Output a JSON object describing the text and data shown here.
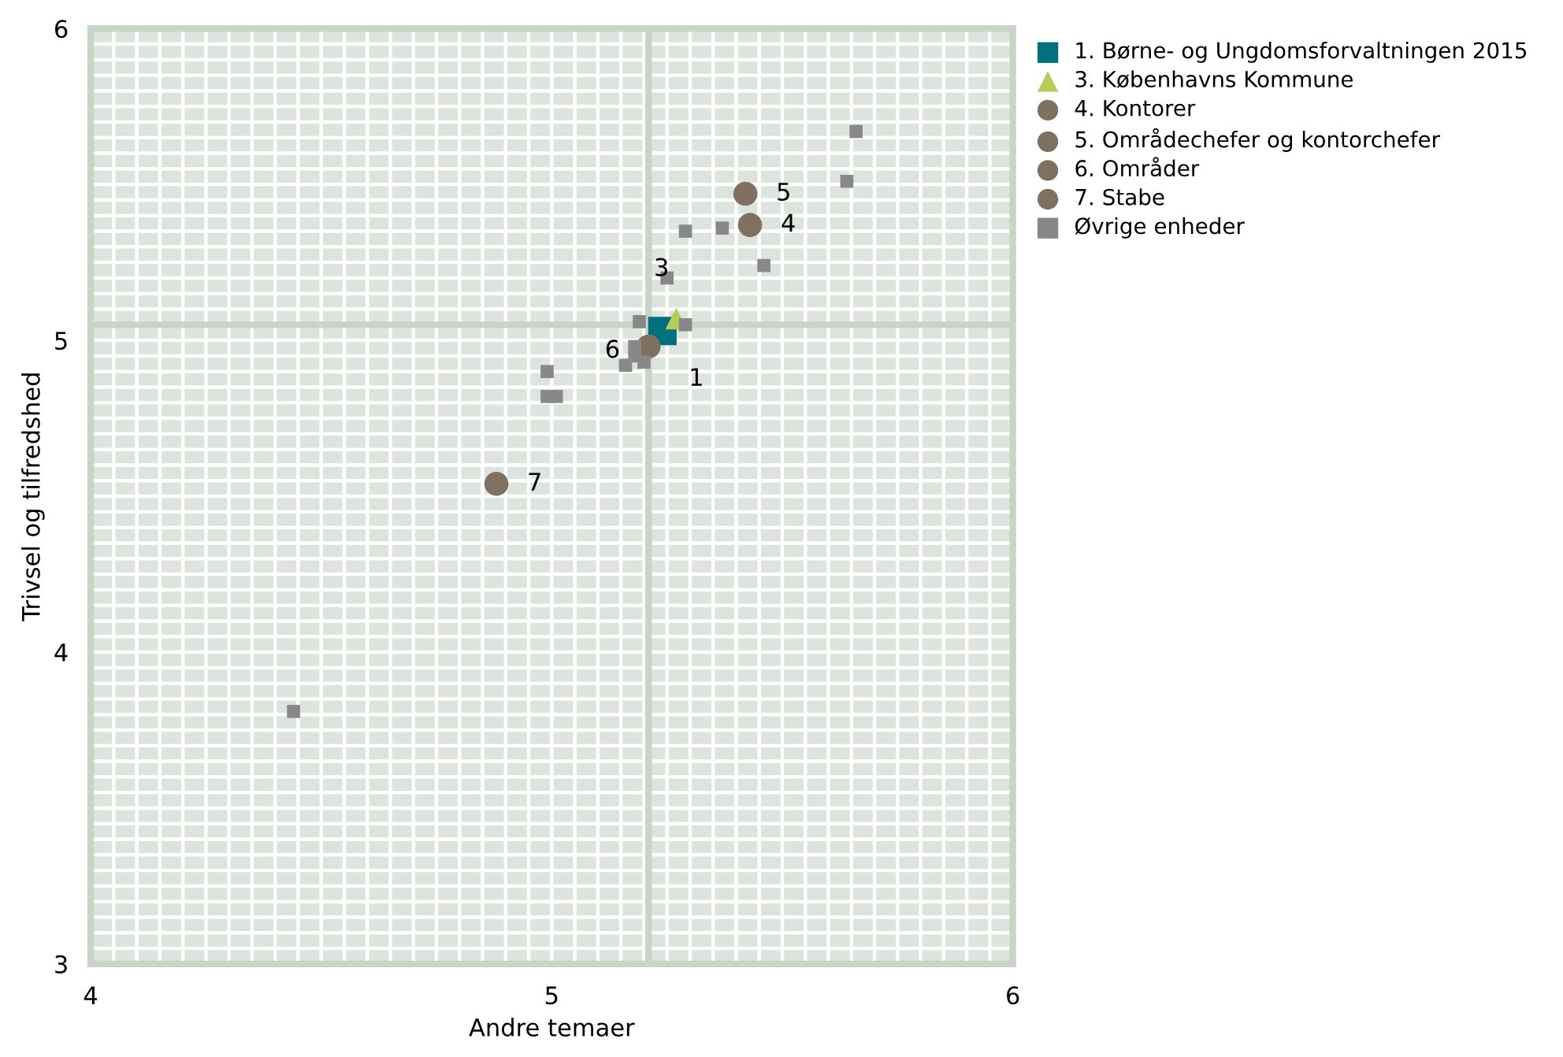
{
  "chart_data": {
    "type": "scatter",
    "xlabel": "Andre temaer",
    "ylabel": "Trivsel og tilfredshed",
    "xlim": [
      4,
      6
    ],
    "ylim": [
      3,
      6
    ],
    "xticks": [
      4,
      5,
      6
    ],
    "yticks": [
      3,
      4,
      5,
      6
    ],
    "grid": true,
    "legend": "right",
    "ref_lines": [
      {
        "axis": "x",
        "value": 5.21,
        "color": "#c8d4c8"
      },
      {
        "axis": "y",
        "value": 5.05,
        "color": "#c8d4c8"
      }
    ],
    "series": [
      {
        "name": "1. Børne- og Ungdomsforvaltningen 2015",
        "color": "#00707f",
        "marker": "square",
        "x": [
          5.24
        ],
        "values": [
          5.03
        ]
      },
      {
        "name": "3. Københavns Kommune",
        "color": "#b5cc5a",
        "marker": "triangle",
        "x": [
          5.27
        ],
        "values": [
          5.07
        ]
      },
      {
        "name": "4. Kontorer",
        "color": "#7f7060",
        "marker": "circle",
        "x": [
          5.43
        ],
        "values": [
          5.37
        ]
      },
      {
        "name": "5. Områdechefer og kontorchefer",
        "color": "#7f7060",
        "marker": "circle",
        "x": [
          5.42
        ],
        "values": [
          5.47
        ]
      },
      {
        "name": "6. Områder",
        "color": "#7f7060",
        "marker": "circle",
        "x": [
          5.21
        ],
        "values": [
          4.98
        ]
      },
      {
        "name": "7. Stabe",
        "color": "#7f7060",
        "marker": "circle",
        "x": [
          4.88
        ],
        "values": [
          4.54
        ]
      },
      {
        "name": "Øvrige enheder",
        "color": "#888888",
        "marker": "square",
        "x": [
          5.66,
          5.64,
          5.37,
          5.29,
          5.46,
          5.25,
          5.19,
          5.29,
          5.18,
          5.18,
          5.16,
          5.2,
          4.99,
          4.99,
          5.01,
          4.44
        ],
        "values": [
          5.67,
          5.51,
          5.36,
          5.35,
          5.24,
          5.2,
          5.06,
          5.05,
          4.98,
          4.95,
          4.92,
          4.93,
          4.9,
          4.82,
          4.82,
          3.81
        ]
      }
    ],
    "annotations": [
      {
        "text": "5",
        "x": 5.42,
        "y": 5.47
      },
      {
        "text": "4",
        "x": 5.43,
        "y": 5.37
      },
      {
        "text": "3",
        "x": 5.25,
        "y": 5.2
      },
      {
        "text": "6",
        "x": 5.21,
        "y": 4.98
      },
      {
        "text": "1",
        "x": 5.24,
        "y": 5.03
      },
      {
        "text": "7",
        "x": 4.88,
        "y": 4.54
      }
    ]
  }
}
